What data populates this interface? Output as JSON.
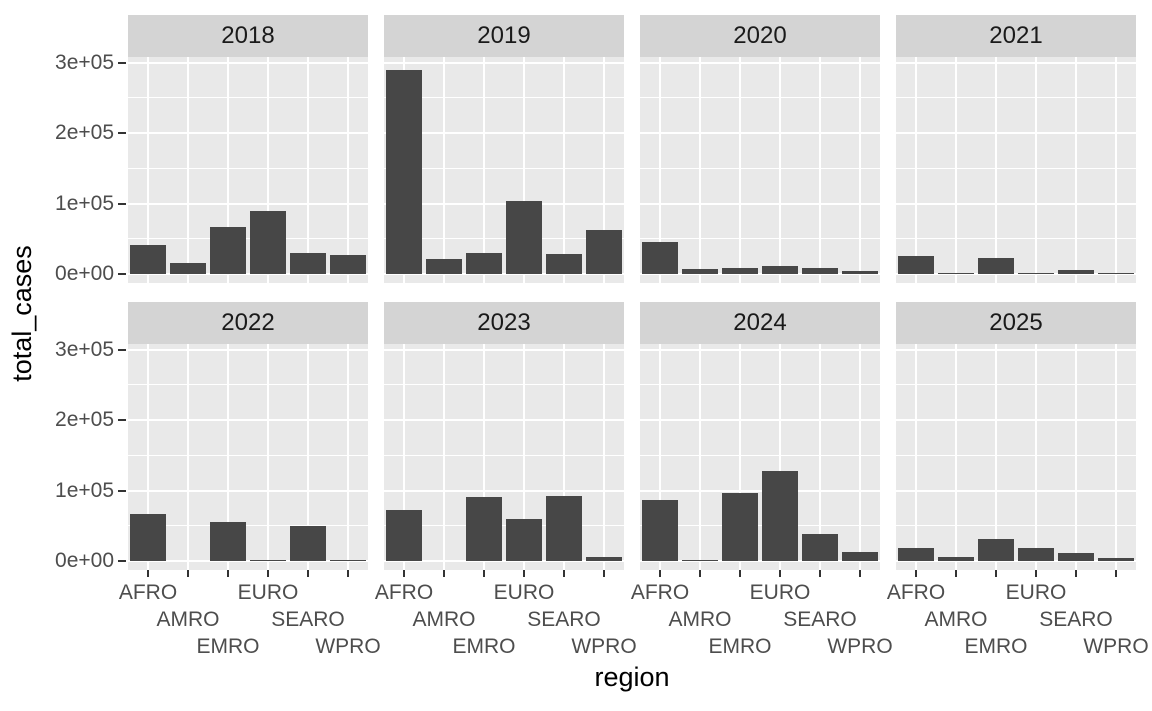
{
  "figure": {
    "background": "#ffffff",
    "colors": {
      "bar": "#474747",
      "panel_bg": "#e9e9e9",
      "strip_bg": "#d4d4d4",
      "strip_text": "#1a1a1a",
      "gridline": "#ffffff",
      "axis_tick": "#333333",
      "tick_label_text": "#4d4d4d",
      "axis_title_text": "#000000"
    }
  },
  "chart_data": {
    "type": "bar",
    "title": "",
    "xlabel": "region",
    "ylabel": "total_cases",
    "facet_variable": "year",
    "categories": [
      "AFRO",
      "AMRO",
      "EMRO",
      "EURO",
      "SEARO",
      "WPRO"
    ],
    "ylim": [
      0,
      305000
    ],
    "y_ticks": [
      0,
      100000,
      200000,
      300000
    ],
    "y_tick_labels": [
      "0e+00",
      "1e+05",
      "2e+05",
      "3e+05"
    ],
    "y_minor_ticks": [
      50000,
      150000,
      250000
    ],
    "grid": true,
    "legend": false,
    "layout": "facet_wrap 2 rows x 4 cols",
    "facets": [
      {
        "label": "2018",
        "values": [
          41000,
          15000,
          67000,
          89000,
          30000,
          27000
        ]
      },
      {
        "label": "2019",
        "values": [
          290000,
          21000,
          30000,
          103000,
          28000,
          62000
        ]
      },
      {
        "label": "2020",
        "values": [
          45000,
          7000,
          9000,
          12000,
          9000,
          4000
        ]
      },
      {
        "label": "2021",
        "values": [
          25000,
          800,
          23000,
          300,
          6000,
          1200
        ]
      },
      {
        "label": "2022",
        "values": [
          66000,
          0,
          56000,
          1500,
          50000,
          2000
        ]
      },
      {
        "label": "2023",
        "values": [
          73000,
          0,
          91000,
          60000,
          92000,
          6000
        ]
      },
      {
        "label": "2024",
        "values": [
          86000,
          1000,
          96000,
          127000,
          38000,
          13000
        ]
      },
      {
        "label": "2025",
        "values": [
          18000,
          5000,
          31000,
          18000,
          11000,
          4000
        ]
      }
    ]
  }
}
